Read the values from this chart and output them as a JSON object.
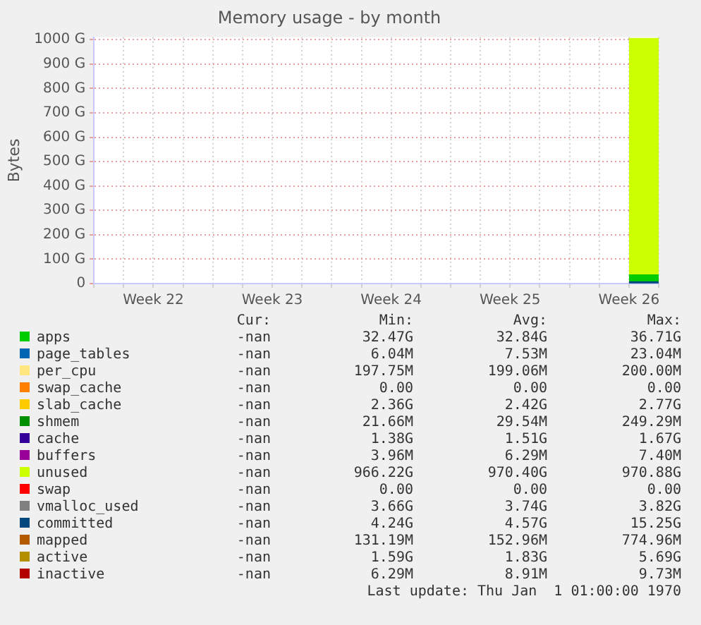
{
  "chart_data": {
    "type": "area",
    "title": "Memory usage - by month",
    "ylabel": "Bytes",
    "stacked": true,
    "grid": true,
    "legend": "bottom",
    "marker": "none",
    "categories": [
      null,
      null,
      "Week 22",
      null,
      null,
      null,
      "Week 23",
      null,
      null,
      null,
      "Week 24",
      null,
      null,
      null,
      "Week 25",
      null,
      null,
      null,
      "Week 26",
      null
    ],
    "ylim": [
      0,
      1010
    ],
    "yticks": [
      0,
      {
        "value": 100,
        "label": "100 G"
      },
      {
        "value": 200,
        "label": "200 G"
      },
      {
        "value": 300,
        "label": "300 G"
      },
      {
        "value": 400,
        "label": "400 G"
      },
      {
        "value": 500,
        "label": "500 G"
      },
      {
        "value": 600,
        "label": "600 G"
      },
      {
        "value": 700,
        "label": "700 G"
      },
      {
        "value": 800,
        "label": "800 G"
      },
      {
        "value": 900,
        "label": "900 G"
      },
      {
        "value": 1000,
        "label": "1000 G"
      }
    ],
    "series": [
      {
        "name": "apps",
        "color": "#00cc00",
        "values": [
          null,
          null,
          null,
          null,
          null,
          null,
          null,
          null,
          null,
          null,
          null,
          null,
          null,
          null,
          null,
          null,
          null,
          null,
          33,
          33
        ]
      },
      {
        "name": "page_tables",
        "color": "#0066b3",
        "values": [
          null,
          null,
          null,
          null,
          null,
          null,
          null,
          null,
          null,
          null,
          null,
          null,
          null,
          null,
          null,
          null,
          null,
          null,
          null,
          null
        ]
      },
      {
        "name": "per_cpu",
        "color": "#ffe680",
        "values": [
          null,
          null,
          null,
          null,
          null,
          null,
          null,
          null,
          null,
          null,
          null,
          null,
          null,
          null,
          null,
          null,
          null,
          null,
          null,
          null
        ]
      },
      {
        "name": "swap_cache",
        "color": "#ff8000",
        "values": [
          null,
          null,
          null,
          null,
          null,
          null,
          null,
          null,
          null,
          null,
          null,
          null,
          null,
          null,
          null,
          null,
          null,
          null,
          null,
          null
        ]
      },
      {
        "name": "slab_cache",
        "color": "#ffcc00",
        "values": [
          null,
          null,
          null,
          null,
          null,
          null,
          null,
          null,
          null,
          null,
          null,
          null,
          null,
          null,
          null,
          null,
          null,
          null,
          null,
          null
        ]
      },
      {
        "name": "shmem",
        "color": "#008f00",
        "values": [
          null,
          null,
          null,
          null,
          null,
          null,
          null,
          null,
          null,
          null,
          null,
          null,
          null,
          null,
          null,
          null,
          null,
          null,
          null,
          null
        ]
      },
      {
        "name": "cache",
        "color": "#330099",
        "values": [
          null,
          null,
          null,
          null,
          null,
          null,
          null,
          null,
          null,
          null,
          null,
          null,
          null,
          null,
          null,
          null,
          null,
          null,
          null,
          null
        ]
      },
      {
        "name": "buffers",
        "color": "#990099",
        "values": [
          null,
          null,
          null,
          null,
          null,
          null,
          null,
          null,
          null,
          null,
          null,
          null,
          null,
          null,
          null,
          null,
          null,
          null,
          null,
          null
        ]
      },
      {
        "name": "unused",
        "color": "#ccff00",
        "values": [
          null,
          null,
          null,
          null,
          null,
          null,
          null,
          null,
          null,
          null,
          null,
          null,
          null,
          null,
          null,
          null,
          null,
          null,
          970,
          970
        ]
      },
      {
        "name": "swap",
        "color": "#ff0000",
        "values": [
          null,
          null,
          null,
          null,
          null,
          null,
          null,
          null,
          null,
          null,
          null,
          null,
          null,
          null,
          null,
          null,
          null,
          null,
          null,
          null
        ]
      },
      {
        "name": "vmalloc_used",
        "type": "line",
        "color": "#808080",
        "values": [
          null,
          null,
          null,
          null,
          null,
          null,
          null,
          null,
          null,
          null,
          null,
          null,
          null,
          null,
          null,
          null,
          null,
          null,
          null,
          null
        ]
      },
      {
        "name": "committed",
        "type": "line",
        "color": "#00487d",
        "values": [
          null,
          null,
          null,
          null,
          null,
          null,
          null,
          null,
          null,
          null,
          null,
          null,
          null,
          null,
          null,
          null,
          null,
          null,
          5,
          5
        ]
      },
      {
        "name": "mapped",
        "type": "line",
        "color": "#b35a00",
        "values": [
          null,
          null,
          null,
          null,
          null,
          null,
          null,
          null,
          null,
          null,
          null,
          null,
          null,
          null,
          null,
          null,
          null,
          null,
          null,
          null
        ]
      },
      {
        "name": "active",
        "type": "line",
        "color": "#b38f00",
        "values": [
          null,
          null,
          null,
          null,
          null,
          null,
          null,
          null,
          null,
          null,
          null,
          null,
          null,
          null,
          null,
          null,
          null,
          null,
          null,
          null
        ]
      },
      {
        "name": "inactive",
        "type": "line",
        "color": "#b30000",
        "values": [
          null,
          null,
          null,
          null,
          null,
          null,
          null,
          null,
          null,
          null,
          null,
          null,
          null,
          null,
          null,
          null,
          null,
          null,
          null,
          null
        ]
      }
    ],
    "annotations": [
      "Cur:",
      "Min:",
      "Avg:",
      "Max:",
      "-nan",
      "32.47G",
      "32.84G",
      "36.71G",
      "-nan",
      "6.04M",
      "7.53M",
      "23.04M",
      "-nan",
      "197.75M",
      "199.06M",
      "200.00M",
      "-nan",
      "0.00",
      "0.00",
      "0.00",
      "-nan",
      "2.36G",
      "2.42G",
      "2.77G",
      "-nan",
      "21.66M",
      "29.54M",
      "249.29M",
      "-nan",
      "1.38G",
      "1.51G",
      "1.67G",
      "-nan",
      "3.96M",
      "6.29M",
      "7.40M",
      "-nan",
      "966.22G",
      "970.40G",
      "970.88G",
      "-nan",
      "0.00",
      "0.00",
      "0.00",
      "-nan",
      "3.66G",
      "3.74G",
      "3.82G",
      "-nan",
      "4.24G",
      "4.57G",
      "15.25G",
      "-nan",
      "131.19M",
      "152.96M",
      "774.96M",
      "-nan",
      "1.59G",
      "1.83G",
      "5.69G",
      "-nan",
      "6.29M",
      "8.91M",
      "9.73M",
      "Last update: Thu Jan  1 01:00:00 1970"
    ]
  }
}
